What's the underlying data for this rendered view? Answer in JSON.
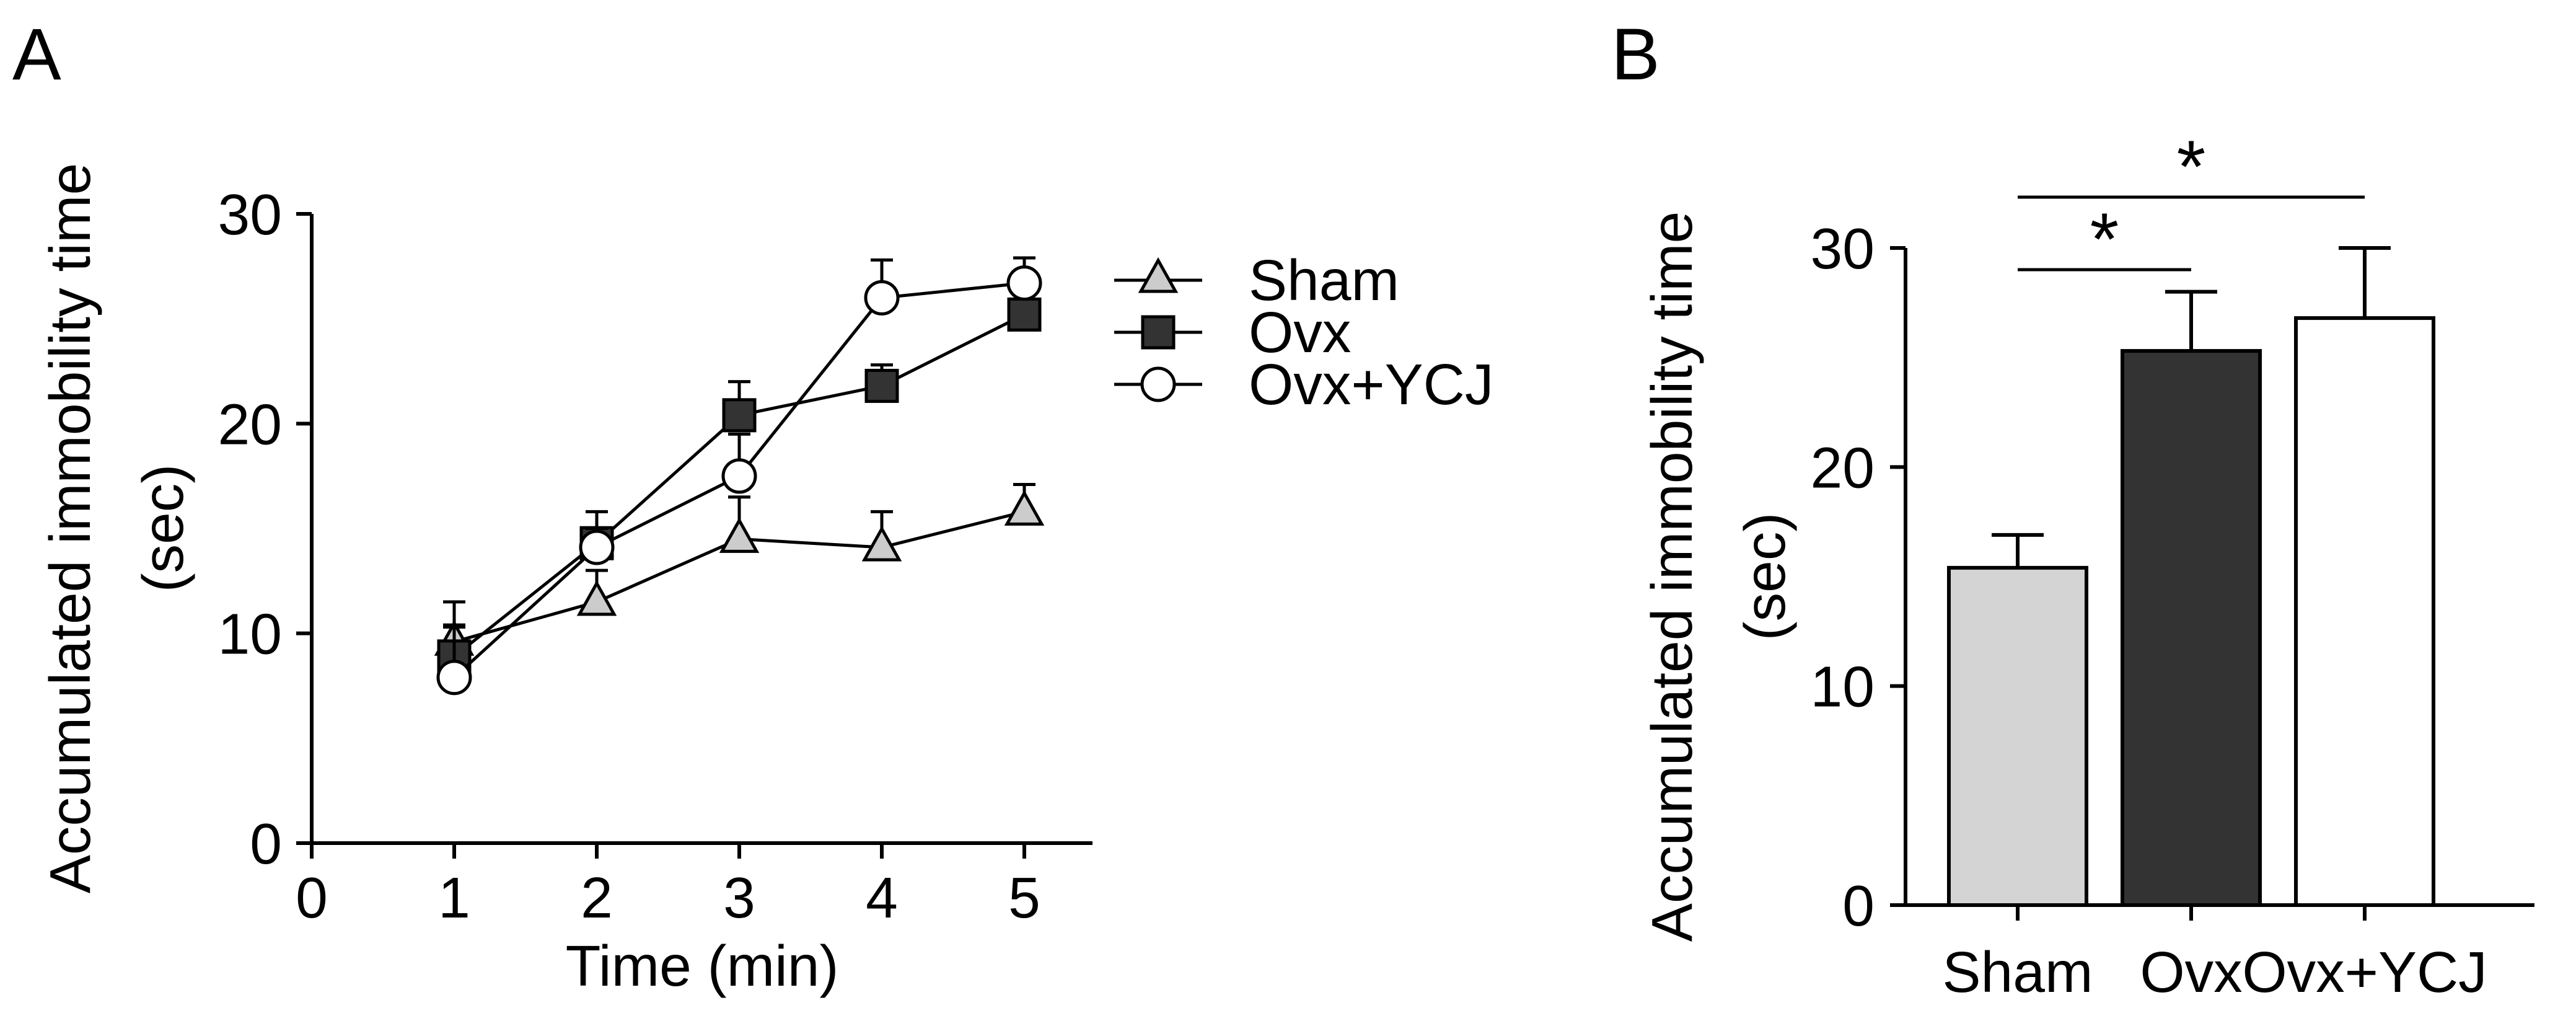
{
  "panels": {
    "a_letter": "A",
    "b_letter": "B"
  },
  "chart_data": [
    {
      "type": "line",
      "xlabel": "Time (min)",
      "ylabel_line1": "Accumulated immobility time",
      "ylabel_line2": "(sec)",
      "x": [
        1,
        2,
        3,
        4,
        5
      ],
      "x_ticks": [
        "0",
        "1",
        "2",
        "3",
        "4",
        "5"
      ],
      "y_ticks": [
        "0",
        "10",
        "20",
        "30"
      ],
      "xlim": [
        0,
        5.5
      ],
      "ylim": [
        0,
        30
      ],
      "legend_position": "right",
      "series": [
        {
          "name": "Sham",
          "marker": "triangle",
          "fill": "#cccccc",
          "values": [
            9.6,
            11.5,
            14.5,
            14.1,
            15.8
          ],
          "errors": [
            1.9,
            1.5,
            2.0,
            1.7,
            1.3
          ]
        },
        {
          "name": "Ovx",
          "marker": "square",
          "fill": "#333333",
          "values": [
            8.9,
            14.3,
            20.4,
            21.8,
            25.2
          ],
          "errors": [
            1.5,
            1.5,
            1.6,
            1.0,
            1.8
          ]
        },
        {
          "name": "Ovx+YCJ",
          "marker": "circle",
          "fill": "#ffffff",
          "values": [
            7.9,
            14.1,
            17.5,
            26.0,
            26.7
          ],
          "errors": [
            2.4,
            0.9,
            2.0,
            1.8,
            1.2
          ]
        }
      ]
    },
    {
      "type": "bar",
      "ylabel_line1": "Accumulated immobility time",
      "ylabel_line2": "(sec)",
      "categories": [
        "Sham",
        "Ovx",
        "Ovx+YCJ"
      ],
      "values": [
        15.4,
        25.3,
        26.8
      ],
      "errors": [
        1.5,
        2.7,
        3.2
      ],
      "colors": [
        "#d4d4d4",
        "#333333",
        "#ffffff"
      ],
      "y_ticks": [
        "0",
        "10",
        "20",
        "30"
      ],
      "ylim": [
        0,
        30
      ],
      "significance": [
        {
          "from": "Sham",
          "to": "Ovx",
          "label": "*"
        },
        {
          "from": "Sham",
          "to": "Ovx+YCJ",
          "label": "*"
        }
      ]
    }
  ]
}
